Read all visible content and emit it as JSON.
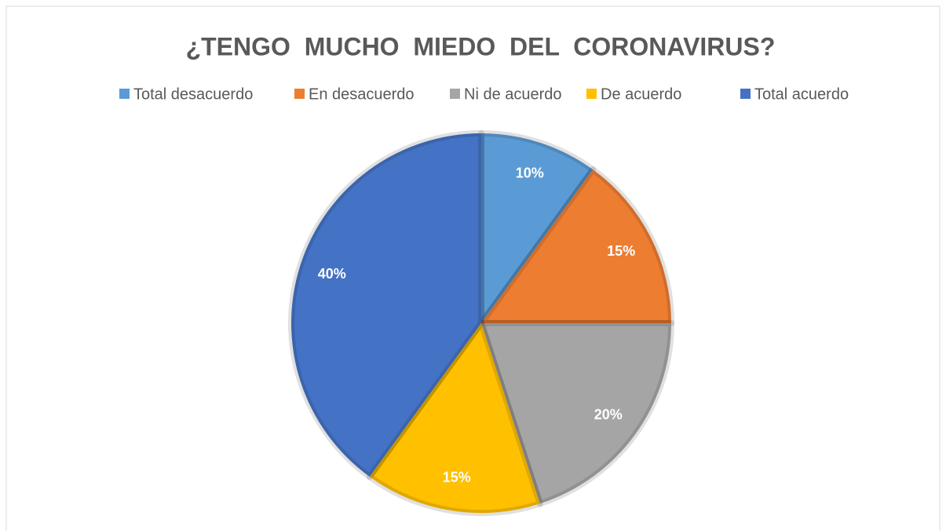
{
  "chart_data": {
    "type": "pie",
    "title": "¿TENGO  MUCHO  MIEDO  DEL  CORONAVIRUS?",
    "categories": [
      "Total desacuerdo",
      "En desacuerdo",
      "Ni de acuerdo",
      "De acuerdo",
      "Total acuerdo"
    ],
    "values": [
      10,
      15,
      20,
      15,
      40
    ],
    "value_labels": [
      "10%",
      "15%",
      "20%",
      "15%",
      "40%"
    ],
    "colors": [
      "#5b9bd5",
      "#ed7d31",
      "#a5a5a5",
      "#ffc000",
      "#4472c4"
    ],
    "legend": "top"
  }
}
